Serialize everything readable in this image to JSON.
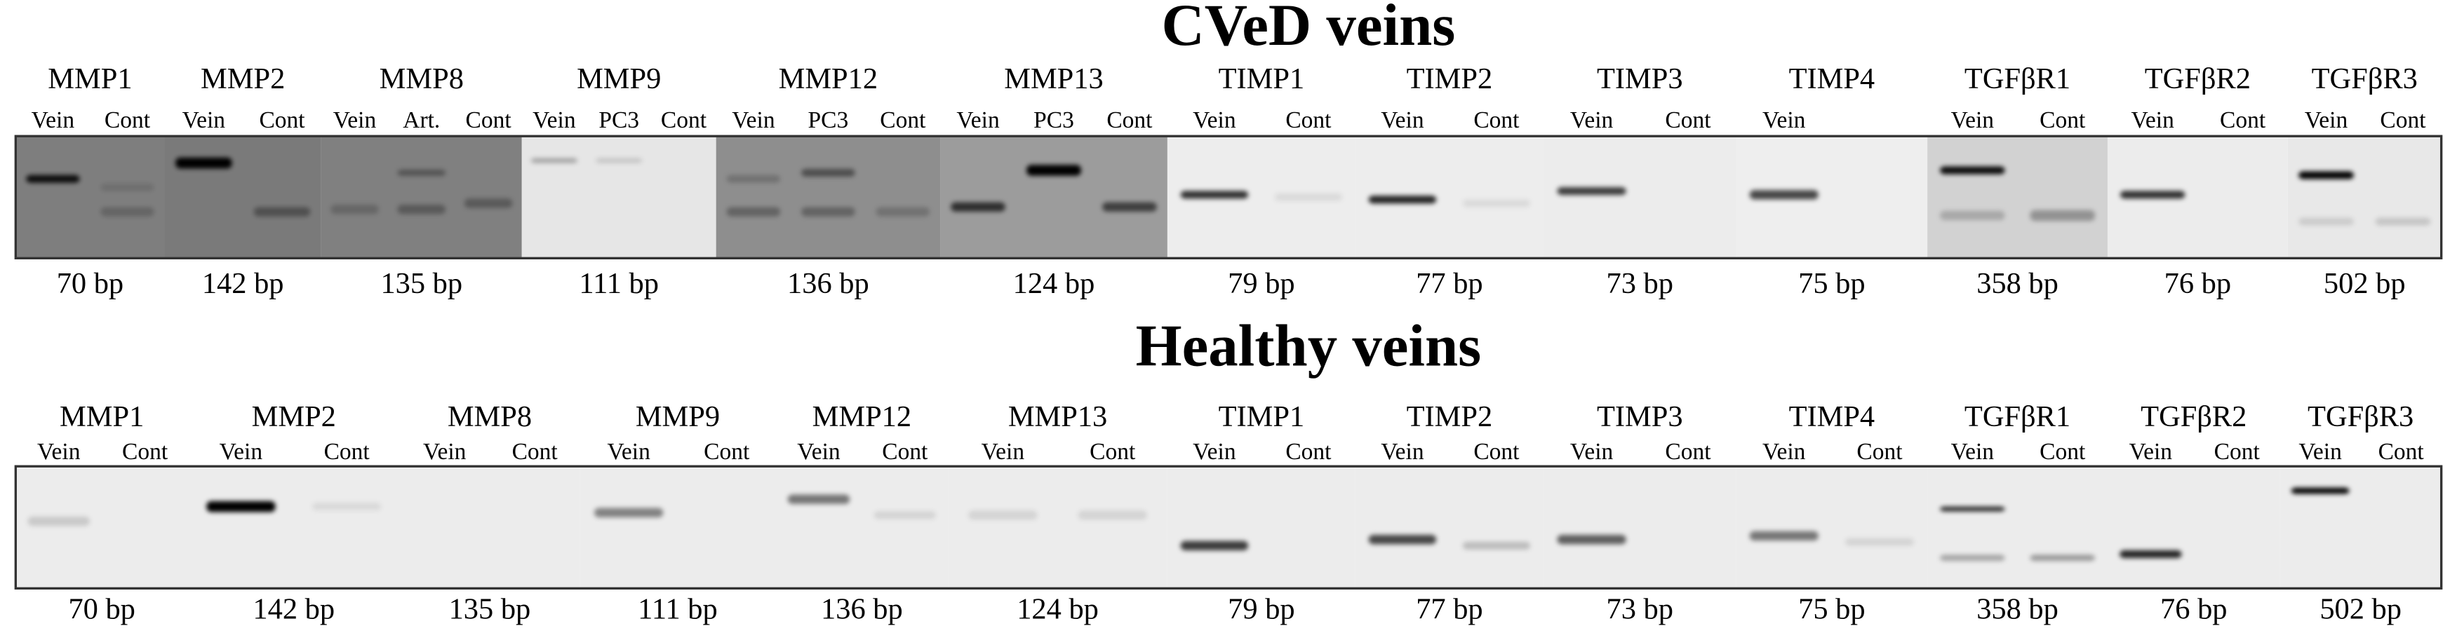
{
  "panels": [
    {
      "title": "CVeD veins",
      "genes": [
        {
          "name": "MMP1",
          "lanes": [
            "Vein",
            "Cont"
          ],
          "bp": "70 bp"
        },
        {
          "name": "MMP2",
          "lanes": [
            "Vein",
            "Cont"
          ],
          "bp": "142 bp"
        },
        {
          "name": "MMP8",
          "lanes": [
            "Vein",
            "Art.",
            "Cont"
          ],
          "bp": "135 bp"
        },
        {
          "name": "MMP9",
          "lanes": [
            "Vein",
            "PC3",
            "Cont"
          ],
          "bp": "111 bp"
        },
        {
          "name": "MMP12",
          "lanes": [
            "Vein",
            "PC3",
            "Cont"
          ],
          "bp": "136 bp"
        },
        {
          "name": "MMP13",
          "lanes": [
            "Vein",
            "PC3",
            "Cont"
          ],
          "bp": "124 bp"
        },
        {
          "name": "TIMP1",
          "lanes": [
            "Vein",
            "Cont"
          ],
          "bp": "79 bp"
        },
        {
          "name": "TIMP2",
          "lanes": [
            "Vein",
            "Cont"
          ],
          "bp": "77 bp"
        },
        {
          "name": "TIMP3",
          "lanes": [
            "Vein",
            "Cont"
          ],
          "bp": "73 bp"
        },
        {
          "name": "TIMP4",
          "lanes": [
            "Vein"
          ],
          "bp": "75 bp"
        },
        {
          "name": "TGFβR1",
          "lanes": [
            "Vein",
            "Cont"
          ],
          "bp": "358 bp"
        },
        {
          "name": "TGFβR2",
          "lanes": [
            "Vein",
            "Cont"
          ],
          "bp": "76 bp"
        },
        {
          "name": "TGFβR3",
          "lanes": [
            "Vein",
            "Cont"
          ],
          "bp": "502 bp"
        }
      ]
    },
    {
      "title": "Healthy veins",
      "genes": [
        {
          "name": "MMP1",
          "lanes": [
            "Vein",
            "Cont"
          ],
          "bp": "70 bp"
        },
        {
          "name": "MMP2",
          "lanes": [
            "Vein",
            "Cont"
          ],
          "bp": "142 bp"
        },
        {
          "name": "MMP8",
          "lanes": [
            "Vein",
            "Cont"
          ],
          "bp": "135 bp"
        },
        {
          "name": "MMP9",
          "lanes": [
            "Vein",
            "Cont"
          ],
          "bp": "111 bp"
        },
        {
          "name": "MMP12",
          "lanes": [
            "Vein",
            "Cont"
          ],
          "bp": "136 bp"
        },
        {
          "name": "MMP13",
          "lanes": [
            "Vein",
            "Cont"
          ],
          "bp": "124 bp"
        },
        {
          "name": "TIMP1",
          "lanes": [
            "Vein",
            "Cont"
          ],
          "bp": "79 bp"
        },
        {
          "name": "TIMP2",
          "lanes": [
            "Vein",
            "Cont"
          ],
          "bp": "77 bp"
        },
        {
          "name": "TIMP3",
          "lanes": [
            "Vein",
            "Cont"
          ],
          "bp": "73 bp"
        },
        {
          "name": "TIMP4",
          "lanes": [
            "Vein",
            "Cont"
          ],
          "bp": "75 bp"
        },
        {
          "name": "TGFβR1",
          "lanes": [
            "Vein",
            "Cont"
          ],
          "bp": "358 bp"
        },
        {
          "name": "TGFβR2",
          "lanes": [
            "Vein",
            "Cont"
          ],
          "bp": "76 bp"
        },
        {
          "name": "TGFβR3",
          "lanes": [
            "Vein",
            "Cont"
          ],
          "bp": "502 bp"
        }
      ]
    }
  ]
}
